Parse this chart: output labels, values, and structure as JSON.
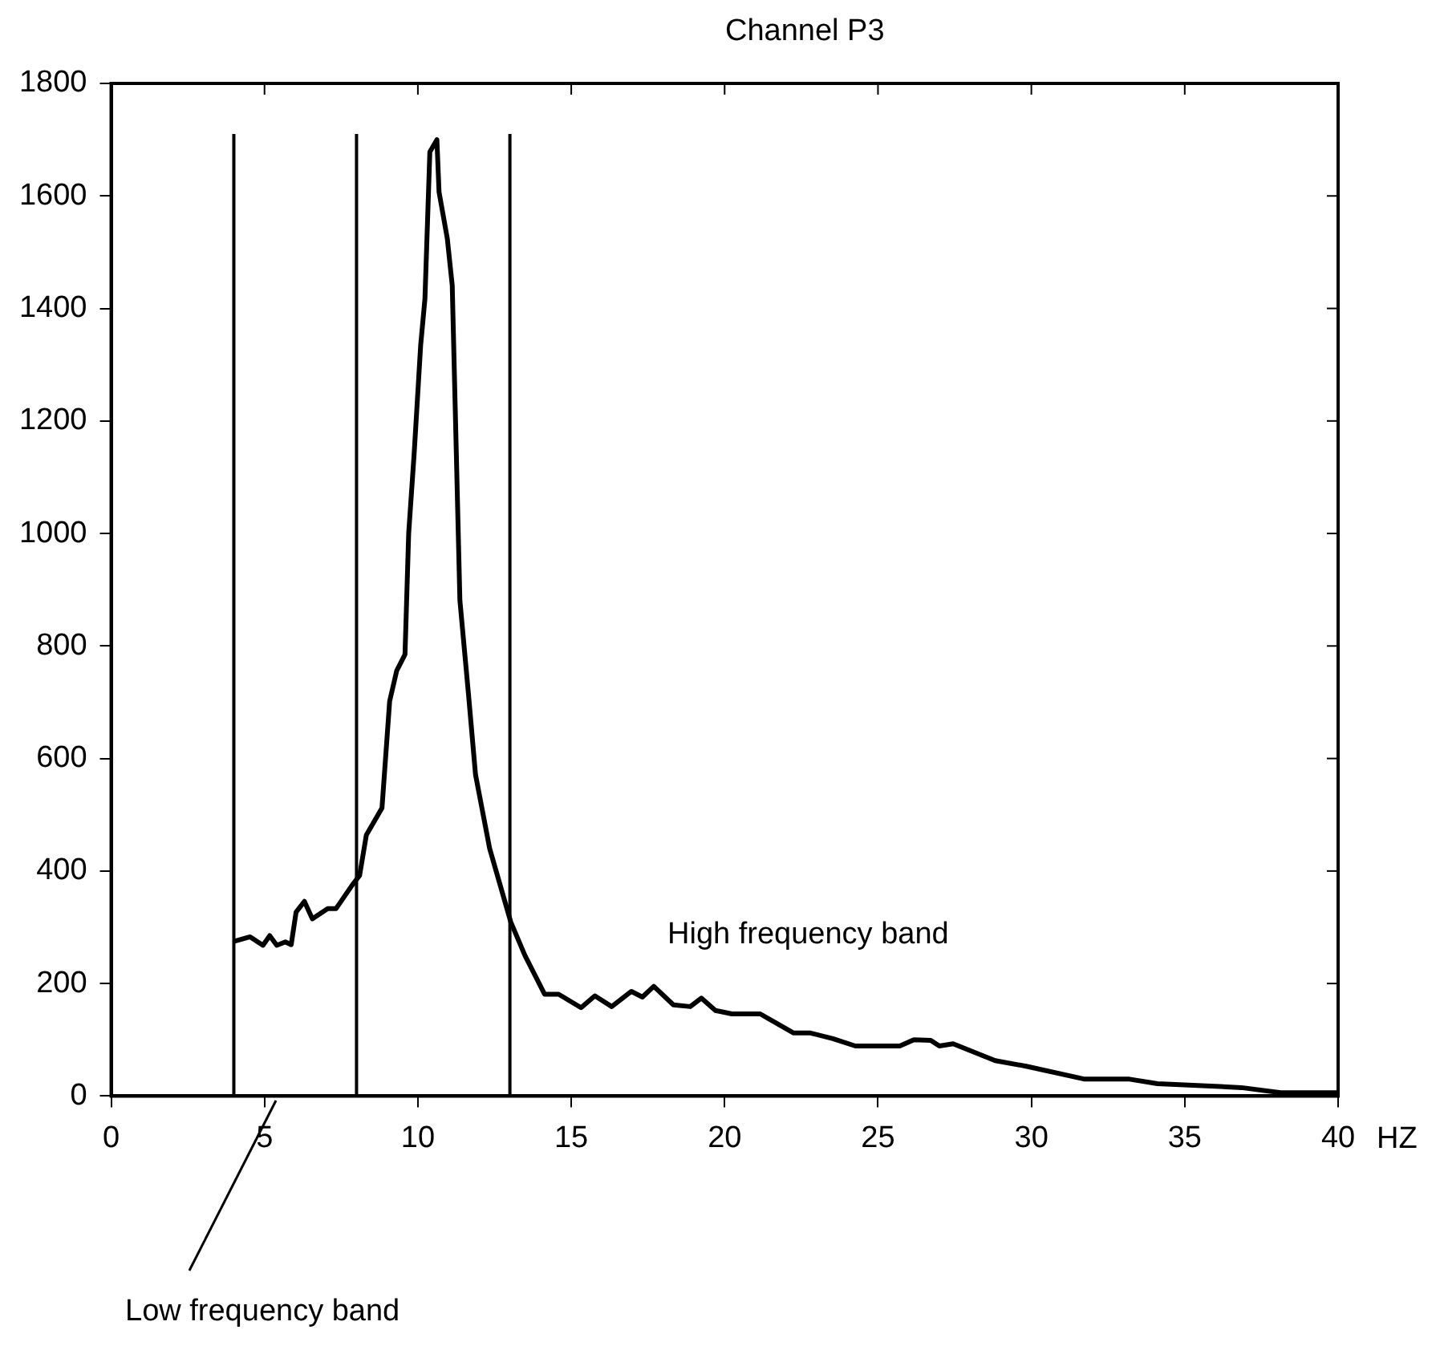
{
  "chart_data": {
    "type": "line",
    "title": "Channel P3",
    "xlabel": "HZ",
    "annotations": [
      "High frequency band",
      "Low frequency band"
    ],
    "series": [
      {
        "color": "#000000",
        "x": [
          4,
          4.53,
          4.95,
          5.17,
          5.4,
          5.68,
          5.87,
          6.03,
          6.3,
          6.56,
          7.06,
          7.33,
          7.86,
          8.1,
          8.32,
          8.83,
          9.08,
          9.31,
          9.58,
          9.7,
          9.88,
          10.09,
          10.23,
          10.39,
          10.62,
          10.69,
          10.96,
          11.12,
          11.37,
          11.65,
          11.88,
          12.34,
          13.03,
          13.49,
          14.13,
          14.59,
          15.32,
          15.77,
          16.32,
          16.96,
          17.32,
          17.69,
          18.33,
          18.88,
          19.24,
          19.7,
          20.24,
          21.16,
          22.25,
          22.8,
          23.53,
          24.26,
          25.71,
          26.17,
          26.72,
          27,
          27.45,
          28.82,
          29.83,
          31.74,
          33.2,
          34.11,
          36.85,
          38.13,
          40
        ],
        "values": [
          275,
          283,
          268,
          285,
          268,
          274,
          269,
          327,
          346,
          315,
          333,
          333,
          375,
          392,
          464,
          512,
          702,
          756,
          785,
          1000,
          1143,
          1334,
          1417,
          1678,
          1700,
          1607,
          1524,
          1441,
          881,
          714,
          571,
          440,
          309,
          250,
          181,
          181,
          157,
          178,
          159,
          186,
          176,
          195,
          162,
          159,
          174,
          152,
          146,
          146,
          112,
          112,
          102,
          89,
          89,
          100,
          99,
          89,
          93,
          63,
          53,
          30,
          30,
          22,
          15,
          6,
          6
        ]
      }
    ],
    "xlim": [
      0,
      40
    ],
    "xticks": [
      0,
      5,
      10,
      15,
      20,
      25,
      30,
      35,
      40
    ],
    "ylim": [
      0,
      1800
    ],
    "yticks": [
      0,
      200,
      400,
      600,
      800,
      1000,
      1200,
      1400,
      1600,
      1800
    ],
    "ref_lines": [
      {
        "axis": "x",
        "value": 4,
        "color": "#000000"
      },
      {
        "axis": "x",
        "value": 8,
        "color": "#000000"
      },
      {
        "axis": "x",
        "value": 13,
        "color": "#000000"
      }
    ],
    "grid": false,
    "legend": false,
    "marker": "none",
    "line_style": "solid"
  }
}
